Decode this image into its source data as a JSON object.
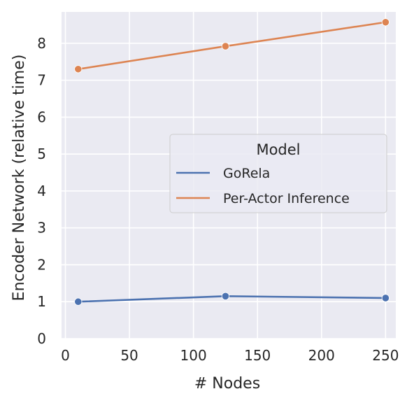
{
  "chart_data": {
    "type": "line",
    "xlabel": "# Nodes",
    "ylabel": "Encoder Network (relative time)",
    "xlim": [
      -3,
      258
    ],
    "ylim": [
      0,
      8.85
    ],
    "xticks": [
      0,
      50,
      100,
      150,
      200,
      250
    ],
    "yticks": [
      0,
      1,
      2,
      3,
      4,
      5,
      6,
      7,
      8
    ],
    "grid": true,
    "legend": {
      "title": "Model",
      "placement": "center-right"
    },
    "series": [
      {
        "name": "GoRela",
        "color": "#4c72b0",
        "x": [
          10,
          125,
          250
        ],
        "y": [
          1.0,
          1.15,
          1.1
        ]
      },
      {
        "name": "Per-Actor Inference",
        "color": "#dd8452",
        "x": [
          10,
          125,
          250
        ],
        "y": [
          7.3,
          7.92,
          8.57
        ]
      }
    ]
  },
  "style": {
    "plot_background": "#eaeaf2",
    "grid_color": "#ffffff"
  }
}
